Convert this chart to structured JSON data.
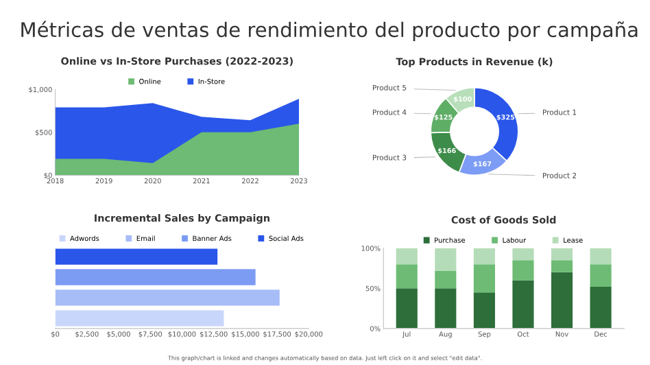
{
  "chart_data": [
    {
      "type": "area",
      "title": "Online vs In-Store Purchases (2022-2023)",
      "annotations": [
        "Métricas de ventas de rendimiento del producto por campaña",
        "This graph/chart is linked and changes automatically based on data. Just left click on it and select \"edit data\"."
      ],
      "x": [
        2018,
        2019,
        2020,
        2021,
        2022,
        2023
      ],
      "xlim": [
        2018,
        2023
      ],
      "xticks": [
        2018,
        2019,
        2020,
        2021,
        2022,
        2023
      ],
      "ylim": [
        0,
        1000
      ],
      "yticks": [
        {
          "value": 0,
          "label": "$0"
        },
        {
          "value": 500,
          "label": "$500"
        },
        {
          "value": 1000,
          "label": "$1,000"
        }
      ],
      "legend": "top",
      "grid": false,
      "series": [
        {
          "name": "Online",
          "color": "#6dbb74",
          "values": [
            190,
            190,
            140,
            500,
            500,
            600
          ]
        },
        {
          "name": "In-Store",
          "color": "#2a56ea",
          "values": [
            790,
            790,
            840,
            680,
            640,
            890
          ]
        }
      ]
    },
    {
      "type": "donut",
      "title": "Top Products in Revenue (k)",
      "categories": [
        "Product 1",
        "Product 2",
        "Product 3",
        "Product 4",
        "Product 5"
      ],
      "values": [
        325,
        167,
        166,
        125,
        100
      ],
      "value_labels": [
        "$325",
        "$167",
        "$166",
        "$125",
        "$100"
      ],
      "colors": [
        "#2a56ea",
        "#7d9cf5",
        "#3d8c4a",
        "#5fae66",
        "#b8dfba"
      ]
    },
    {
      "type": "bar",
      "orientation": "horizontal",
      "stacked": true,
      "title": "Incremental Sales by Campaign",
      "categories": [
        null,
        null,
        null,
        null
      ],
      "xlim": [
        0,
        20000
      ],
      "xticks": [
        {
          "value": 0,
          "label": "$0"
        },
        {
          "value": 2500,
          "label": "$2,500"
        },
        {
          "value": 5000,
          "label": "$5,000"
        },
        {
          "value": 7500,
          "label": "$7,500"
        },
        {
          "value": 10000,
          "label": "$10,000"
        },
        {
          "value": 12500,
          "label": "$12,500"
        },
        {
          "value": 15000,
          "label": "$15,000"
        },
        {
          "value": 17500,
          "label": "$17,500"
        },
        {
          "value": 20000,
          "label": "$20,000"
        }
      ],
      "legend": "top",
      "grid": false,
      "series": [
        {
          "name": "Adwords",
          "color": "#c9d6fb",
          "values": [
            null,
            null,
            null,
            13300
          ]
        },
        {
          "name": "Email",
          "color": "#a7bdf8",
          "values": [
            null,
            null,
            17700,
            null
          ]
        },
        {
          "name": "Banner Ads",
          "color": "#7c9cf4",
          "values": [
            null,
            15800,
            null,
            null
          ]
        },
        {
          "name": "Social Ads",
          "color": "#2a56ea",
          "values": [
            12800,
            null,
            null,
            null
          ]
        }
      ]
    },
    {
      "type": "bar",
      "stacked": true,
      "title": "Cost of Goods Sold",
      "categories": [
        "Jul",
        "Aug",
        "Sep",
        "Oct",
        "Nov",
        "Dec"
      ],
      "ylim": [
        0,
        100
      ],
      "yticks": [
        {
          "value": 0,
          "label": "0%"
        },
        {
          "value": 50,
          "label": "50%"
        },
        {
          "value": 100,
          "label": "100%"
        }
      ],
      "legend": "top",
      "grid": false,
      "series": [
        {
          "name": "Purchase",
          "color": "#2d6e3a",
          "values": [
            50,
            50,
            45,
            60,
            70,
            52
          ]
        },
        {
          "name": "Labour",
          "color": "#6dbb74",
          "values": [
            30,
            22,
            35,
            25,
            15,
            28
          ]
        },
        {
          "name": "Lease",
          "color": "#b5dcb8",
          "values": [
            20,
            28,
            20,
            15,
            15,
            20
          ]
        }
      ]
    }
  ]
}
